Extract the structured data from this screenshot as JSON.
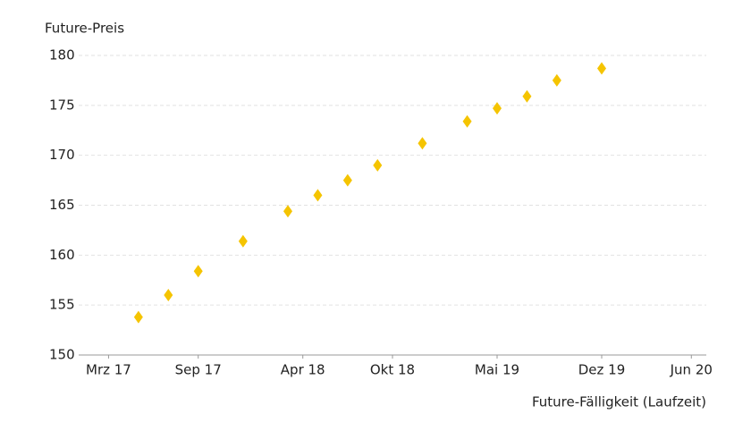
{
  "chart_data": {
    "type": "scatter",
    "y_label": "Future-Preis",
    "x_label": "Future-Fälligkeit (Laufzeit)",
    "x": [
      "2017-05",
      "2017-07",
      "2017-09",
      "2017-12",
      "2018-03",
      "2018-05",
      "2018-07",
      "2018-09",
      "2018-12",
      "2019-03",
      "2019-05",
      "2019-07",
      "2019-09",
      "2019-12"
    ],
    "values": [
      153.8,
      156.0,
      158.4,
      161.4,
      164.4,
      166.0,
      167.5,
      169.0,
      171.2,
      173.4,
      174.7,
      175.9,
      177.5,
      178.7
    ],
    "color": "#f5c400",
    "xlim": [
      "2017-01",
      "2020-07"
    ],
    "xticks": [
      {
        "value": "2017-03",
        "label": "Mrz 17"
      },
      {
        "value": "2017-09",
        "label": "Sep 17"
      },
      {
        "value": "2018-04",
        "label": "Apr 18"
      },
      {
        "value": "2018-10",
        "label": "Okt 18"
      },
      {
        "value": "2019-05",
        "label": "Mai 19"
      },
      {
        "value": "2019-12",
        "label": "Dez 19"
      },
      {
        "value": "2020-06",
        "label": "Jun 20"
      }
    ],
    "ylim": [
      150,
      180
    ],
    "yticks": [
      150,
      155,
      160,
      165,
      170,
      175,
      180
    ],
    "grid": true
  }
}
